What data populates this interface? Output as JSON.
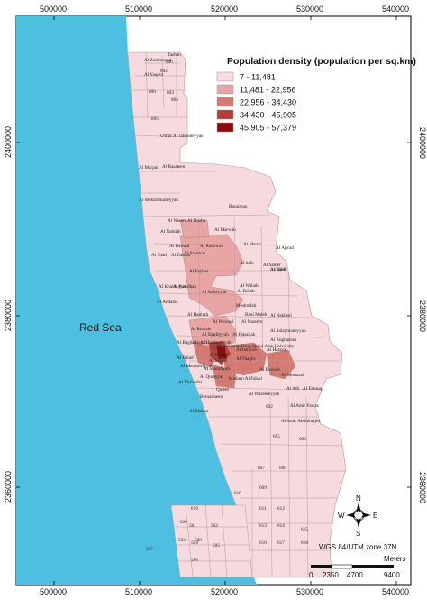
{
  "map": {
    "x_ticks": [
      "500000",
      "510000",
      "520000",
      "530000",
      "540000"
    ],
    "y_ticks": [
      "2400000",
      "2380000",
      "2360000"
    ],
    "sea_label": "Red Sea",
    "background_color": "#ffffff",
    "sea_color": "#4dbfe0",
    "land_color": "#f6dadd"
  },
  "legend": {
    "title": "Population density (population per sq.km)",
    "classes": [
      {
        "label": "7 - 11,481",
        "color": "#f8dde0"
      },
      {
        "label": "11,481 - 22,956",
        "color": "#e9a4a4"
      },
      {
        "label": "22,956 - 34,430",
        "color": "#d57a72"
      },
      {
        "label": "34,430 - 45,905",
        "color": "#b23f39"
      },
      {
        "label": "45,905 - 57,379",
        "color": "#8c0d0d"
      }
    ]
  },
  "districts": [
    {
      "name": "Al Zommorod",
      "class": 0
    },
    {
      "name": "806",
      "class": 0
    },
    {
      "name": "Taebah",
      "class": 0
    },
    {
      "name": "Al Yaqout",
      "class": 0
    },
    {
      "name": "802",
      "class": 0
    },
    {
      "name": "808",
      "class": 0
    },
    {
      "name": "803",
      "class": 0
    },
    {
      "name": "804",
      "class": 0
    },
    {
      "name": "805",
      "class": 0
    },
    {
      "name": "O'thur Al Janoubeyyah",
      "class": 0
    },
    {
      "name": "Al Marjan",
      "class": 0
    },
    {
      "name": "Al Basateen",
      "class": 0
    },
    {
      "name": "Al Mohammadeyyah",
      "class": 0
    },
    {
      "name": "Buraiman",
      "class": 0
    },
    {
      "name": "Al Naeem",
      "class": 1
    },
    {
      "name": "Al Nuzha",
      "class": 1
    },
    {
      "name": "Al Nahdah",
      "class": 0
    },
    {
      "name": "Al Marwah",
      "class": 0
    },
    {
      "name": "Al Bawadi",
      "class": 1
    },
    {
      "name": "Al Rabbwah",
      "class": 1
    },
    {
      "name": "Al Manar",
      "class": 0
    },
    {
      "name": "Al Ajwad",
      "class": 0
    },
    {
      "name": "Al Shati",
      "class": 0
    },
    {
      "name": "Al Zahrah",
      "class": 0
    },
    {
      "name": "Al Salamah",
      "class": 1
    },
    {
      "name": "Al Safa",
      "class": 1
    },
    {
      "name": "Al Samer",
      "class": 0
    },
    {
      "name": "Al Fayhaa",
      "class": 1
    },
    {
      "name": "Al Rawdhah",
      "class": 1
    },
    {
      "name": "Al Wahah",
      "class": 0
    },
    {
      "name": "Al Khaldeyyah",
      "class": 0
    },
    {
      "name": "Al Aziziyyah",
      "class": 1
    },
    {
      "name": "Al Rehab",
      "class": 0
    },
    {
      "name": "Al Andalus",
      "class": 0
    },
    {
      "name": "Meshrefah",
      "class": 0
    },
    {
      "name": "Al Hamrah",
      "class": 0
    },
    {
      "name": "Bani Malek",
      "class": 0
    },
    {
      "name": "Al Nakheel",
      "class": 0
    },
    {
      "name": "Al Worood",
      "class": 1
    },
    {
      "name": "Al Naseem",
      "class": 0
    },
    {
      "name": "Al Ruwais",
      "class": 1
    },
    {
      "name": "Al Sulaymaneyyah",
      "class": 0
    },
    {
      "name": "Al Shatfeyyah",
      "class": 0
    },
    {
      "name": "Al Faisaliah",
      "class": 1
    },
    {
      "name": "Al Rughamah",
      "class": 0
    },
    {
      "name": "Al Bagdadiyyah",
      "class": 2
    },
    {
      "name": "Al Hindawiyyah",
      "class": 3
    },
    {
      "name": "Al Kandarah",
      "class": 3
    },
    {
      "name": "King Abdul Aziz University",
      "class": 0
    },
    {
      "name": "Al Balad",
      "class": 2
    },
    {
      "name": "Al Sabeel",
      "class": 2
    },
    {
      "name": "Al Thaghr",
      "class": 2
    },
    {
      "name": "Al Jama'ah",
      "class": 2
    },
    {
      "name": "Al Harazat",
      "class": 0
    },
    {
      "name": "Al Mendawiyyah",
      "class": 1
    },
    {
      "name": "Al Nuzlah",
      "class": 1
    },
    {
      "name": "Al Sharafiyah",
      "class": 1
    },
    {
      "name": "Al Buwaib",
      "class": 2
    },
    {
      "name": "Al Mustarah",
      "class": 0
    },
    {
      "name": "Al Tha'aleba",
      "class": 1
    },
    {
      "name": "Al Qurayyat",
      "class": 2
    },
    {
      "name": "Madaen Al Fahad",
      "class": 2
    },
    {
      "name": "Al Adl",
      "class": 0
    },
    {
      "name": "Al Farouq",
      "class": 0
    },
    {
      "name": "Quleel",
      "class": 2
    },
    {
      "name": "Beruaimeen",
      "class": 0
    },
    {
      "name": "Al Wazeereyyah",
      "class": 0
    },
    {
      "name": "Al Amir Fawaz",
      "class": 0
    },
    {
      "name": "Al Mahjar",
      "class": 0
    },
    {
      "name": "602",
      "class": 0
    },
    {
      "name": "Al Amir Abdulmajid",
      "class": 0
    },
    {
      "name": "605",
      "class": 0
    },
    {
      "name": "606",
      "class": 0
    },
    {
      "name": "607",
      "class": 0
    },
    {
      "name": "608",
      "class": 0
    },
    {
      "name": "609",
      "class": 0
    },
    {
      "name": "610",
      "class": 0
    },
    {
      "name": "611",
      "class": 0
    },
    {
      "name": "612",
      "class": 0
    },
    {
      "name": "613",
      "class": 0
    },
    {
      "name": "614",
      "class": 0
    },
    {
      "name": "615",
      "class": 0
    },
    {
      "name": "616",
      "class": 0
    },
    {
      "name": "617",
      "class": 0
    },
    {
      "name": "618",
      "class": 0
    },
    {
      "name": "619",
      "class": 0
    },
    {
      "name": "620",
      "class": 0
    },
    {
      "name": "501",
      "class": 0
    },
    {
      "name": "502",
      "class": 0
    },
    {
      "name": "503",
      "class": 0
    },
    {
      "name": "504",
      "class": 0
    },
    {
      "name": "505",
      "class": 0
    },
    {
      "name": "506",
      "class": 0
    },
    {
      "name": "507",
      "class": 0
    },
    {
      "name": "508",
      "class": 0
    },
    {
      "name": "As Sahil",
      "class": 0
    },
    {
      "name": "Al Wadi",
      "class": 0
    }
  ],
  "north_arrow": {
    "n": "N",
    "s": "S",
    "e": "E",
    "w": "W"
  },
  "projection": "WGS 84/UTM zone 37N",
  "scale_bar": {
    "unit": "Meters",
    "labels": [
      "0",
      "2350",
      "4700",
      "9400"
    ]
  }
}
